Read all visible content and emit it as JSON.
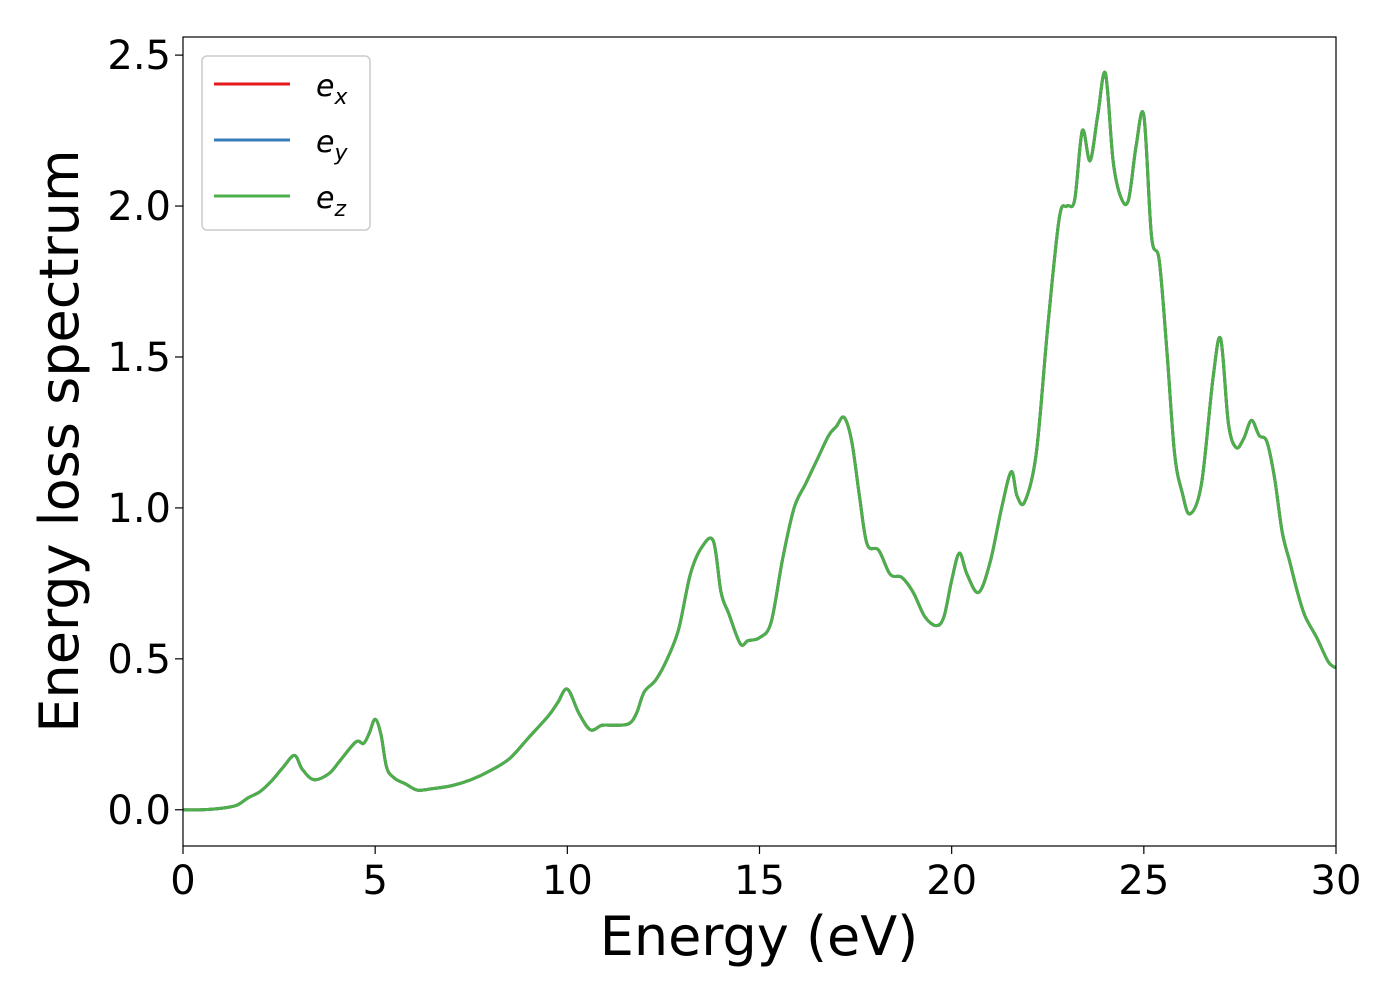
{
  "chart_data": {
    "type": "line",
    "xlabel": "Energy (eV)",
    "ylabel": "Energy loss spectrum",
    "xlim": [
      0,
      30
    ],
    "ylim": [
      -0.12,
      2.56
    ],
    "xticks": [
      0,
      5,
      10,
      15,
      20,
      25,
      30
    ],
    "xtick_labels": [
      "0",
      "5",
      "10",
      "15",
      "20",
      "25",
      "30"
    ],
    "yticks": [
      0.0,
      0.5,
      1.0,
      1.5,
      2.0,
      2.5
    ],
    "ytick_labels": [
      "0.0",
      "0.5",
      "1.0",
      "1.5",
      "2.0",
      "2.5"
    ],
    "grid": false,
    "legend_position": "top-left",
    "series": [
      {
        "name": "e",
        "sub": "x",
        "color": "#e41a1c",
        "visible_line": false
      },
      {
        "name": "e",
        "sub": "y",
        "color": "#377eb8",
        "visible_line": false
      },
      {
        "name": "e",
        "sub": "z",
        "color": "#4daf4a",
        "visible_line": true
      }
    ],
    "x": [
      0,
      0.5,
      1.0,
      1.4,
      1.7,
      2.0,
      2.3,
      2.6,
      2.9,
      3.1,
      3.4,
      3.8,
      4.1,
      4.5,
      4.7,
      4.85,
      5.0,
      5.15,
      5.3,
      5.5,
      5.8,
      6.1,
      6.5,
      7.0,
      7.5,
      8.0,
      8.5,
      9.0,
      9.5,
      9.75,
      10.0,
      10.3,
      10.6,
      10.9,
      11.2,
      11.6,
      11.8,
      12.0,
      12.3,
      12.6,
      12.9,
      13.2,
      13.5,
      13.8,
      14.0,
      14.2,
      14.5,
      14.7,
      15.0,
      15.3,
      15.6,
      15.9,
      16.2,
      16.5,
      16.8,
      17.0,
      17.2,
      17.4,
      17.6,
      17.8,
      18.1,
      18.4,
      18.7,
      19.0,
      19.3,
      19.6,
      19.8,
      20.0,
      20.2,
      20.4,
      20.7,
      21.0,
      21.3,
      21.55,
      21.7,
      21.9,
      22.2,
      22.5,
      22.8,
      23.0,
      23.2,
      23.4,
      23.6,
      23.8,
      24.0,
      24.2,
      24.4,
      24.6,
      24.8,
      25.0,
      25.2,
      25.4,
      25.6,
      25.8,
      26.0,
      26.2,
      26.5,
      26.8,
      27.0,
      27.2,
      27.4,
      27.6,
      27.8,
      28.0,
      28.2,
      28.4,
      28.6,
      28.8,
      29.0,
      29.2,
      29.5,
      29.8,
      30.0
    ],
    "values": [
      0.0,
      0.0,
      0.005,
      0.015,
      0.04,
      0.06,
      0.095,
      0.14,
      0.18,
      0.135,
      0.1,
      0.12,
      0.165,
      0.225,
      0.22,
      0.255,
      0.3,
      0.25,
      0.14,
      0.105,
      0.085,
      0.065,
      0.07,
      0.08,
      0.1,
      0.13,
      0.17,
      0.24,
      0.31,
      0.355,
      0.4,
      0.32,
      0.265,
      0.28,
      0.28,
      0.285,
      0.32,
      0.39,
      0.43,
      0.5,
      0.6,
      0.78,
      0.87,
      0.89,
      0.72,
      0.65,
      0.55,
      0.56,
      0.57,
      0.62,
      0.83,
      1.0,
      1.08,
      1.16,
      1.24,
      1.27,
      1.3,
      1.22,
      1.04,
      0.88,
      0.86,
      0.78,
      0.77,
      0.72,
      0.64,
      0.61,
      0.64,
      0.76,
      0.85,
      0.78,
      0.72,
      0.82,
      1.0,
      1.12,
      1.04,
      1.02,
      1.18,
      1.6,
      1.96,
      2.0,
      2.02,
      2.25,
      2.15,
      2.3,
      2.44,
      2.15,
      2.03,
      2.02,
      2.2,
      2.3,
      1.9,
      1.82,
      1.52,
      1.18,
      1.05,
      0.98,
      1.08,
      1.43,
      1.56,
      1.28,
      1.2,
      1.23,
      1.29,
      1.24,
      1.22,
      1.1,
      0.92,
      0.82,
      0.72,
      0.64,
      0.57,
      0.49,
      0.47
    ]
  }
}
